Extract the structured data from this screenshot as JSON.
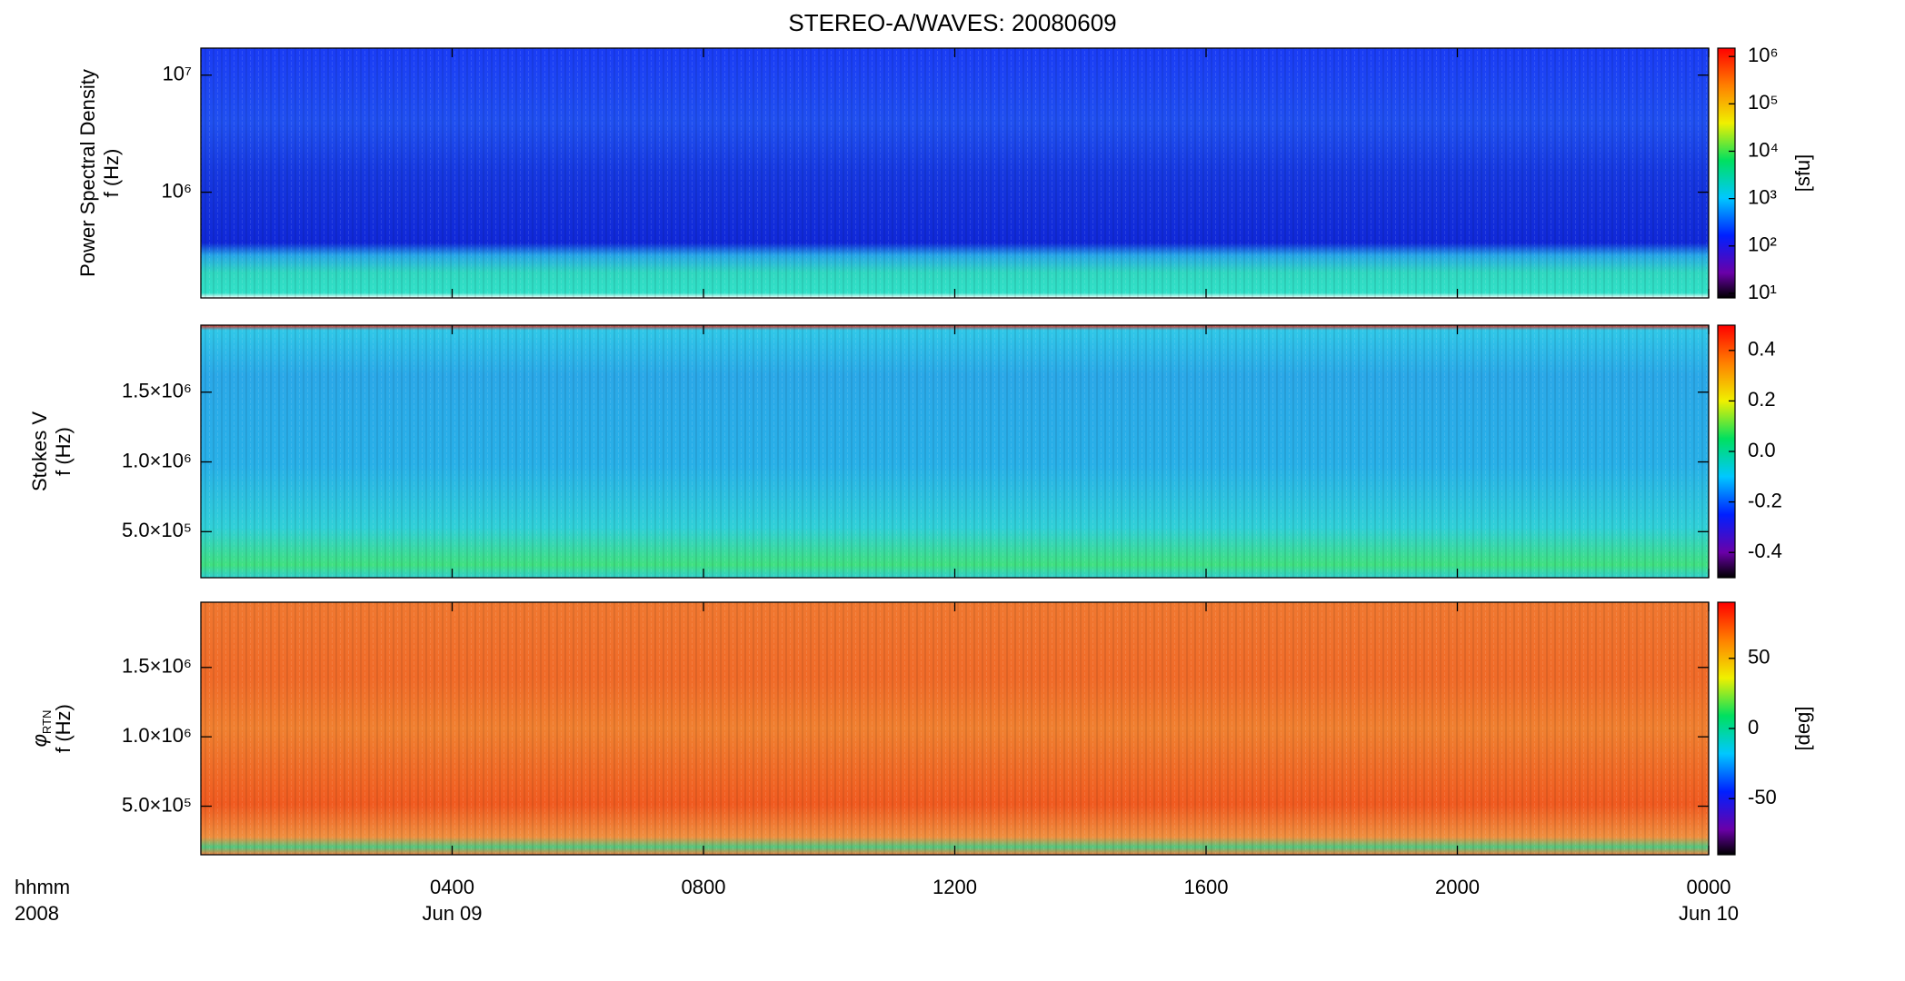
{
  "chart_data": [
    {
      "type": "heatmap",
      "title": "STEREO-A/WAVES: 20080609",
      "ylabel_lines": [
        "Power Spectral Density",
        "f (Hz)"
      ],
      "ylog": true,
      "ylim": [
        125000,
        17000000
      ],
      "yticks": [
        {
          "value": 1000000,
          "label": "10⁶"
        },
        {
          "value": 10000000,
          "label": "10⁷"
        }
      ],
      "clog": true,
      "clim": [
        8,
        1500000
      ],
      "cticks": [
        {
          "value": 10,
          "label": "10¹"
        },
        {
          "value": 100,
          "label": "10²"
        },
        {
          "value": 1000,
          "label": "10³"
        },
        {
          "value": 10000,
          "label": "10⁴"
        },
        {
          "value": 100000,
          "label": "10⁵"
        },
        {
          "value": 1000000,
          "label": "10⁶"
        }
      ],
      "cbar_label": "[sfu]"
    },
    {
      "type": "heatmap",
      "ylabel_lines": [
        "Stokes V",
        "f (Hz)"
      ],
      "ylim": [
        170000,
        1980000
      ],
      "yticks": [
        {
          "value": 500000,
          "label": "5.0×10⁵"
        },
        {
          "value": 1000000,
          "label": "1.0×10⁶"
        },
        {
          "value": 1500000,
          "label": "1.5×10⁶"
        }
      ],
      "clim": [
        -0.5,
        0.5
      ],
      "cticks": [
        -0.4,
        -0.2,
        {
          "value": 0,
          "label": "0.0"
        },
        0.2,
        0.4
      ]
    },
    {
      "type": "heatmap",
      "ylabel_symbol": "φ",
      "ylabel_subscript": "RTN",
      "ylabel_lines": [
        "f (Hz)"
      ],
      "ylim": [
        150000,
        1970000
      ],
      "yticks": [
        {
          "value": 500000,
          "label": "5.0×10⁵"
        },
        {
          "value": 1000000,
          "label": "1.0×10⁶"
        },
        {
          "value": 1500000,
          "label": "1.5×10⁶"
        }
      ],
      "clim": [
        -90,
        90
      ],
      "cticks": [
        -50,
        0,
        50
      ],
      "cbar_label": "[deg]",
      "xlim": [
        0,
        24
      ],
      "xticks": [
        {
          "value": 4,
          "label": "0400"
        },
        {
          "value": 8,
          "label": "0800"
        },
        {
          "value": 12,
          "label": "1200"
        },
        {
          "value": 16,
          "label": "1600"
        },
        {
          "value": 20,
          "label": "2000"
        },
        {
          "value": 24,
          "label": "0000"
        }
      ],
      "xdate_labels": [
        {
          "value": 4,
          "label": "Jun 09"
        },
        {
          "value": 24,
          "label": "Jun 10"
        }
      ],
      "xaxis_labels": [
        "hhmm",
        "2008"
      ]
    }
  ]
}
